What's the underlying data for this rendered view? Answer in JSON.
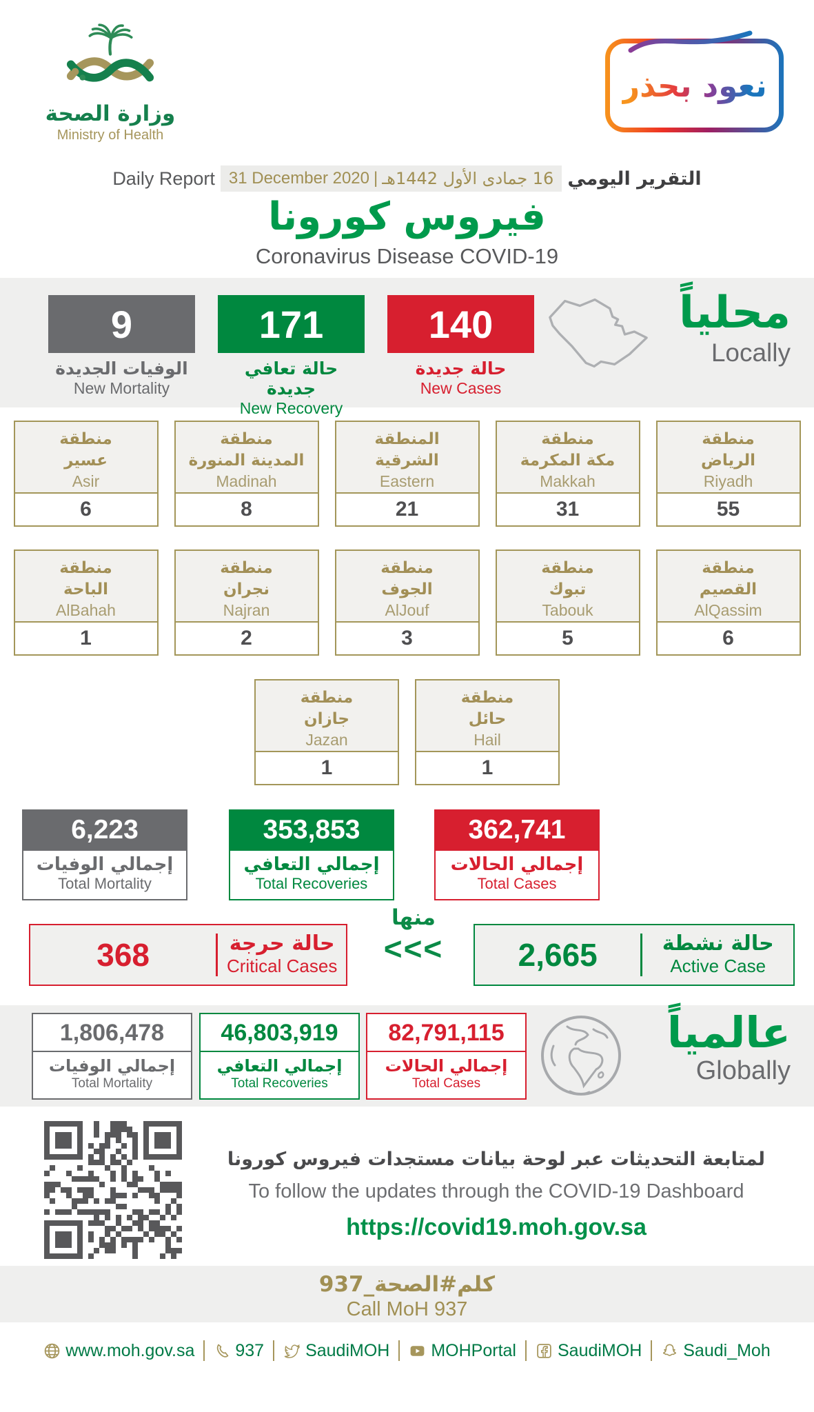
{
  "header": {
    "logo": {
      "arabic": "وزارة الصحة",
      "english": "Ministry of Health"
    },
    "badge": {
      "text": "نعود بحذر"
    }
  },
  "report_line": {
    "title_ar": "التقرير اليومي",
    "hijri_date": "16 جمادى الأول 1442هـ",
    "separator": "|",
    "gregorian_date": "31 December 2020",
    "title_en": "Daily Report"
  },
  "title": {
    "ar": "فيروس كورونا",
    "en": "Coronavirus Disease COVID-19"
  },
  "locally": {
    "label_ar": "محلياً",
    "label_en": "Locally",
    "stats": [
      {
        "value": "9",
        "label_ar": "الوفيات الجديدة",
        "label_en": "New Mortality",
        "color": "#6A6B6E"
      },
      {
        "value": "171",
        "label_ar": "حالة تعافي جديدة",
        "label_en": "New Recovery Cases",
        "color": "#00883F"
      },
      {
        "value": "140",
        "label_ar": "حالة جديدة",
        "label_en": "New Cases",
        "color": "#D71F2F"
      }
    ]
  },
  "regions": [
    {
      "ar1": "منطقة",
      "ar2": "عسير",
      "en": "Asir",
      "value": "6"
    },
    {
      "ar1": "منطقة",
      "ar2": "المدينة المنورة",
      "en": "Madinah",
      "value": "8"
    },
    {
      "ar1": "المنطقة",
      "ar2": "الشرقية",
      "en": "Eastern",
      "value": "21"
    },
    {
      "ar1": "منطقة",
      "ar2": "مكة المكرمة",
      "en": "Makkah",
      "value": "31"
    },
    {
      "ar1": "منطقة",
      "ar2": "الرياض",
      "en": "Riyadh",
      "value": "55"
    },
    {
      "ar1": "منطقة",
      "ar2": "الباحة",
      "en": "AlBahah",
      "value": "1"
    },
    {
      "ar1": "منطقة",
      "ar2": "نجران",
      "en": "Najran",
      "value": "2"
    },
    {
      "ar1": "منطقة",
      "ar2": "الجوف",
      "en": "AlJouf",
      "value": "3"
    },
    {
      "ar1": "منطقة",
      "ar2": "تبوك",
      "en": "Tabouk",
      "value": "5"
    },
    {
      "ar1": "منطقة",
      "ar2": "القصيم",
      "en": "AlQassim",
      "value": "6"
    },
    {
      "ar1": "منطقة",
      "ar2": "جازان",
      "en": "Jazan",
      "value": "1"
    },
    {
      "ar1": "منطقة",
      "ar2": "حائل",
      "en": "Hail",
      "value": "1"
    }
  ],
  "totals": [
    {
      "value": "6,223",
      "label_ar": "إجمالي الوفيات",
      "label_en": "Total Mortality",
      "color": "#6A6B6E"
    },
    {
      "value": "353,853",
      "label_ar": "إجمالي التعافي",
      "label_en": "Total Recoveries",
      "color": "#00883F"
    },
    {
      "value": "362,741",
      "label_ar": "إجمالي الحالات",
      "label_en": "Total Cases",
      "color": "#D71F2F"
    }
  ],
  "critical": {
    "value": "368",
    "label_ar": "حالة حرجة",
    "label_en": "Critical Cases"
  },
  "minha": {
    "label": "منها",
    "chevrons": "<<<"
  },
  "active": {
    "value": "2,665",
    "label_ar": "حالة نشطة",
    "label_en": "Active Case"
  },
  "globally": {
    "label_ar": "عالمياً",
    "label_en": "Globally",
    "stats": [
      {
        "value": "1,806,478",
        "label_ar": "إجمالي الوفيات",
        "label_en": "Total Mortality",
        "color": "#6A6B6E"
      },
      {
        "value": "46,803,919",
        "label_ar": "إجمالي التعافي",
        "label_en": "Total Recoveries",
        "color": "#00883F"
      },
      {
        "value": "82,791,115",
        "label_ar": "إجمالي الحالات",
        "label_en": "Total Cases",
        "color": "#D71F2F"
      }
    ]
  },
  "dashboard": {
    "line_ar": "لمتابعة التحديثات عبر لوحة بيانات مستجدات فيروس كورونا",
    "line_en": "To follow the updates through the COVID-19 Dashboard",
    "url": "https://covid19.moh.gov.sa"
  },
  "call": {
    "ar": "كلم#الصحة_937",
    "en": "Call MoH 937"
  },
  "footer": {
    "items": [
      {
        "icon": "globe-icon",
        "label": "www.moh.gov.sa"
      },
      {
        "icon": "phone-icon",
        "label": "937"
      },
      {
        "icon": "twitter-icon",
        "label": "SaudiMOH"
      },
      {
        "icon": "youtube-icon",
        "label": "MOHPortal"
      },
      {
        "icon": "facebook-icon",
        "label": "SaudiMOH"
      },
      {
        "icon": "snapchat-icon",
        "label": "Saudi_Moh"
      }
    ]
  },
  "colors": {
    "green": "#00883F",
    "green_text": "#009A4C",
    "red": "#D71F2F",
    "gray": "#6A6B6E",
    "gold": "#A6965C",
    "gold_text": "#A28F56",
    "band_bg": "#EFEFEE",
    "dark_text": "#4A4A4C"
  }
}
